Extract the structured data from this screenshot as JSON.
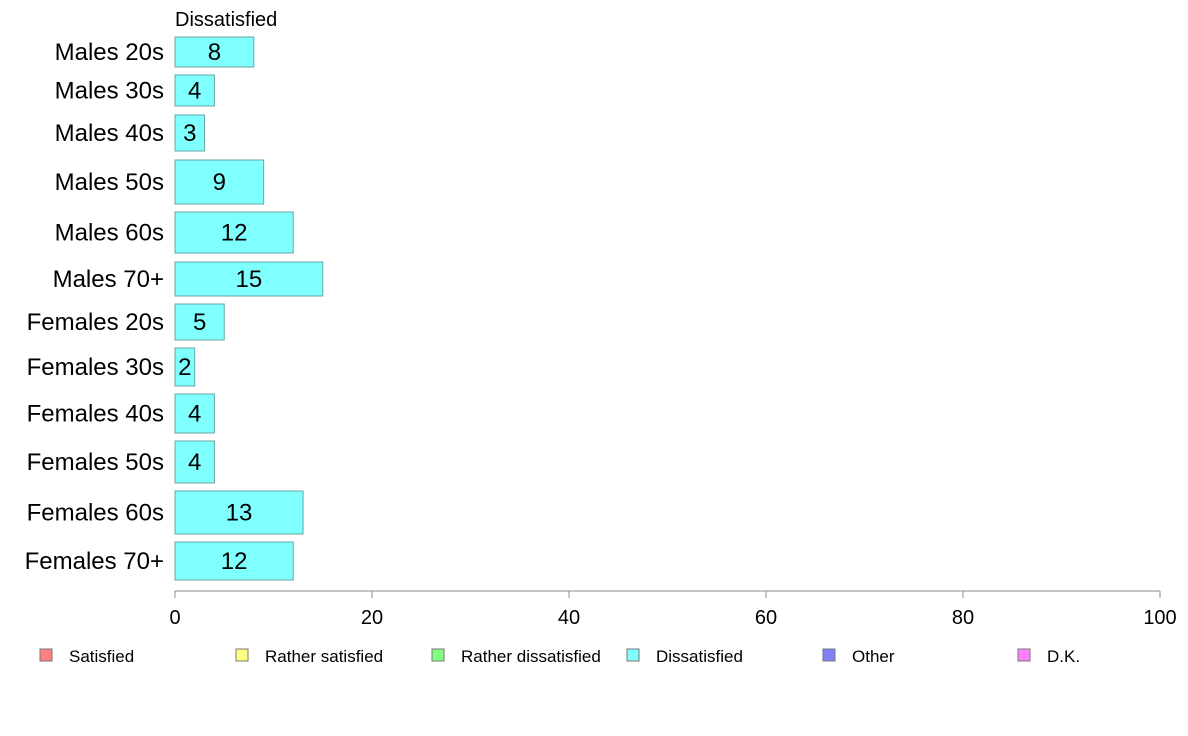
{
  "chart_data": {
    "type": "bar",
    "orientation": "horizontal",
    "panel_title": "Dissatisfied",
    "categories": [
      "Males 20s",
      "Males 30s",
      "Males 40s",
      "Males 50s",
      "Males 60s",
      "Males 70+",
      "Females 20s",
      "Females 30s",
      "Females 40s",
      "Females 50s",
      "Females 60s",
      "Females 70+"
    ],
    "series": [
      {
        "name": "Dissatisfied",
        "values": [
          8,
          4,
          3,
          9,
          12,
          15,
          5,
          2,
          4,
          4,
          13,
          12
        ],
        "color": "#80ffff"
      }
    ],
    "bar_labels": [
      "8",
      "4",
      "3",
      "9",
      "12",
      "15",
      "5",
      "2",
      "4",
      "4",
      "13",
      "12"
    ],
    "xlim": [
      0,
      100
    ],
    "xticks": [
      "0",
      "20",
      "40",
      "60",
      "80",
      "100"
    ],
    "grid": false,
    "legend_position": "bottom",
    "legend": [
      {
        "label": "Satisfied",
        "color": "#ff8080"
      },
      {
        "label": "Rather satisfied",
        "color": "#ffff80"
      },
      {
        "label": "Rather dissatisfied",
        "color": "#80ff80"
      },
      {
        "label": "Dissatisfied",
        "color": "#80ffff"
      },
      {
        "label": "Other",
        "color": "#8080ff"
      },
      {
        "label": "D.K.",
        "color": "#ff80ff"
      }
    ]
  }
}
